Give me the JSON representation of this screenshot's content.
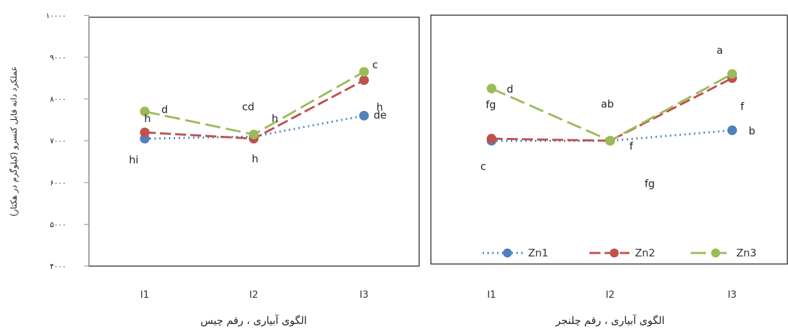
{
  "chart_data": {
    "type": "line",
    "ylabel": "عملکرد دانه قابل کنسرو (کیلوگرم در هکتار)",
    "ylim": [
      4000,
      10000
    ],
    "yticks": [
      4000,
      5000,
      6000,
      7000,
      8000,
      9000,
      10000
    ],
    "ytick_labels": [
      "۴۰۰۰",
      "۵۰۰۰",
      "۶۰۰۰",
      "۷۰۰۰",
      "۸۰۰۰",
      "۹۰۰۰",
      "۱۰۰۰۰"
    ],
    "categories": [
      "I1",
      "I2",
      "I3"
    ],
    "legend": {
      "placement": "bottom-right",
      "panel": 1
    },
    "series_style": [
      {
        "name": "Zn1",
        "color": "#4f81bd",
        "dash": "2,5"
      },
      {
        "name": "Zn2",
        "color": "#c0504d",
        "dash": "16,6"
      },
      {
        "name": "Zn3",
        "color": "#9bbb59",
        "dash": "22,8"
      }
    ],
    "panels": [
      {
        "xlabel": "الگوی آبیاری ، رقم چیس",
        "series": [
          {
            "name": "Zn1",
            "values": [
              7050,
              7100,
              7600
            ]
          },
          {
            "name": "Zn2",
            "values": [
              7200,
              7050,
              8450
            ]
          },
          {
            "name": "Zn3",
            "values": [
              7700,
              7150,
              8650
            ]
          }
        ],
        "annotations": [
          {
            "text": "d",
            "x": "I1",
            "y": 7700
          },
          {
            "text": "h",
            "x": "I1",
            "y": 7350
          },
          {
            "text": "hi",
            "x": "I1",
            "y": 6820
          },
          {
            "text": "cd",
            "x": "I2",
            "y": 7400
          },
          {
            "text": "h",
            "x": "I2",
            "y": 7250
          },
          {
            "text": "h",
            "x": "I2",
            "y": 6850
          },
          {
            "text": "c",
            "x": "I3",
            "y": 8700
          },
          {
            "text": "h",
            "x": "I3",
            "y": 8150
          },
          {
            "text": "de",
            "x": "I3",
            "y": 7600
          }
        ]
      },
      {
        "xlabel": "الگوی آبیاری ، رقم چلنجر",
        "series": [
          {
            "name": "Zn1",
            "values": [
              7000,
              7000,
              7250
            ]
          },
          {
            "name": "Zn2",
            "values": [
              7050,
              7000,
              8500
            ]
          },
          {
            "name": "Zn3",
            "values": [
              8250,
              7000,
              8600
            ]
          }
        ],
        "annotations": [
          {
            "text": "d",
            "x": "I1",
            "y": 8250
          },
          {
            "text": "fg",
            "x": "I1",
            "y": 7450
          },
          {
            "text": "c",
            "x": "I1",
            "y": 6800
          },
          {
            "text": "ab",
            "x": "I2",
            "y": 7400
          },
          {
            "text": "f",
            "x": "I2",
            "y": 6950
          },
          {
            "text": "fg",
            "x": "I2",
            "y": 6550
          },
          {
            "text": "a",
            "x": "I3",
            "y": 8850
          },
          {
            "text": "f",
            "x": "I3",
            "y": 8200
          },
          {
            "text": "b",
            "x": "I3",
            "y": 7250
          }
        ]
      }
    ]
  }
}
